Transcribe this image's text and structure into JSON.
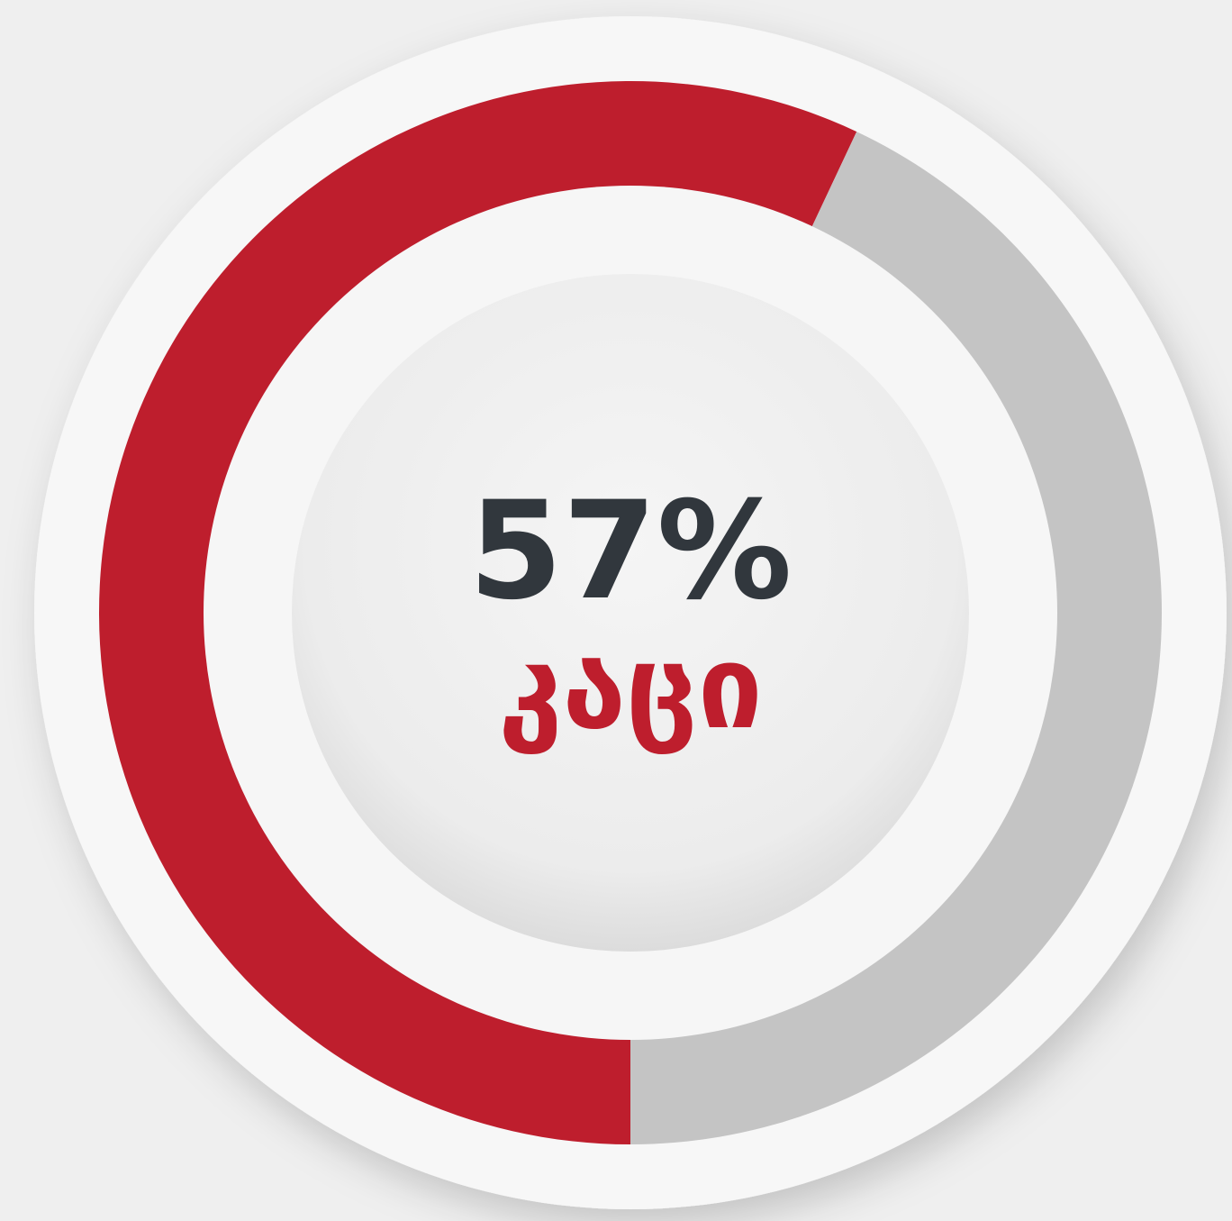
{
  "chart_data": {
    "type": "donut",
    "categories": [
      "კაცი",
      null
    ],
    "values": [
      57,
      43
    ],
    "value_labels": [
      "57%",
      null
    ],
    "colors": [
      "#be1e2d",
      "#c4c4c4"
    ]
  }
}
